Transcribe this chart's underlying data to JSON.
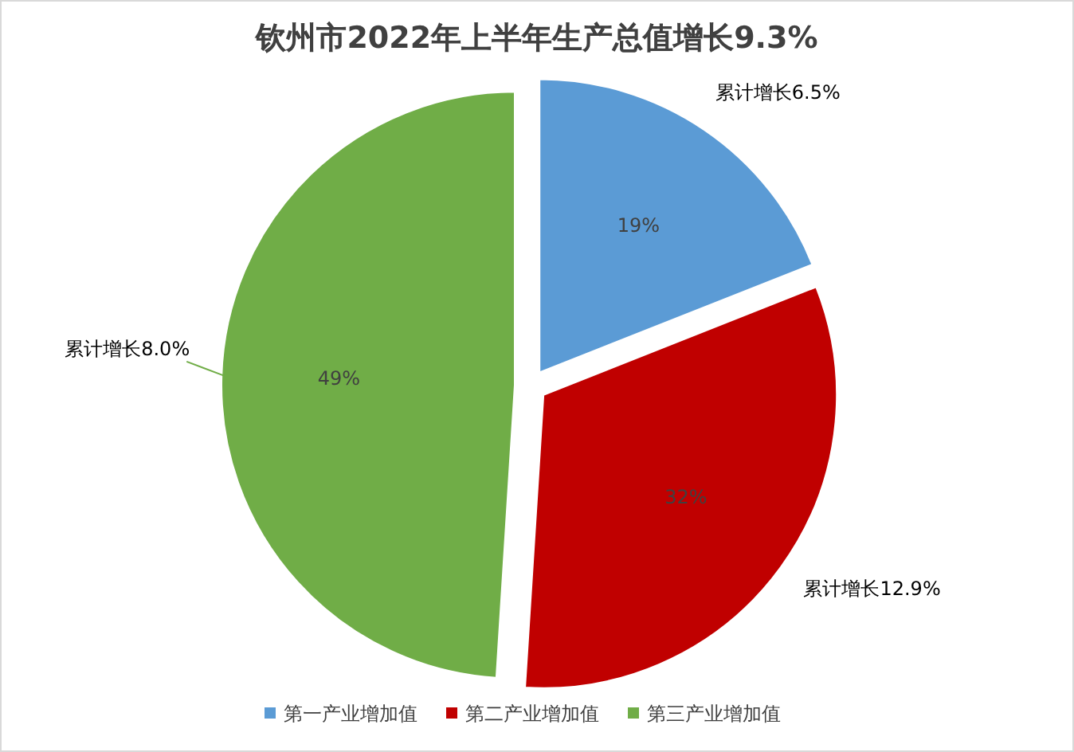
{
  "chart_data": {
    "type": "pie",
    "title": "钦州市2022年上半年生产总值增长9.3%",
    "categories": [
      "第一产业增加值",
      "第二产业增加值",
      "第三产业增加值"
    ],
    "values": [
      19,
      32,
      49
    ],
    "colors": [
      "#5b9bd5",
      "#c00000",
      "#70ad47"
    ],
    "value_labels": [
      "19%",
      "32%",
      "49%"
    ],
    "legend": "bottom",
    "annotations": [
      "累计增长6.5%",
      "累计增长12.9%",
      "累计增长8.0%"
    ]
  }
}
